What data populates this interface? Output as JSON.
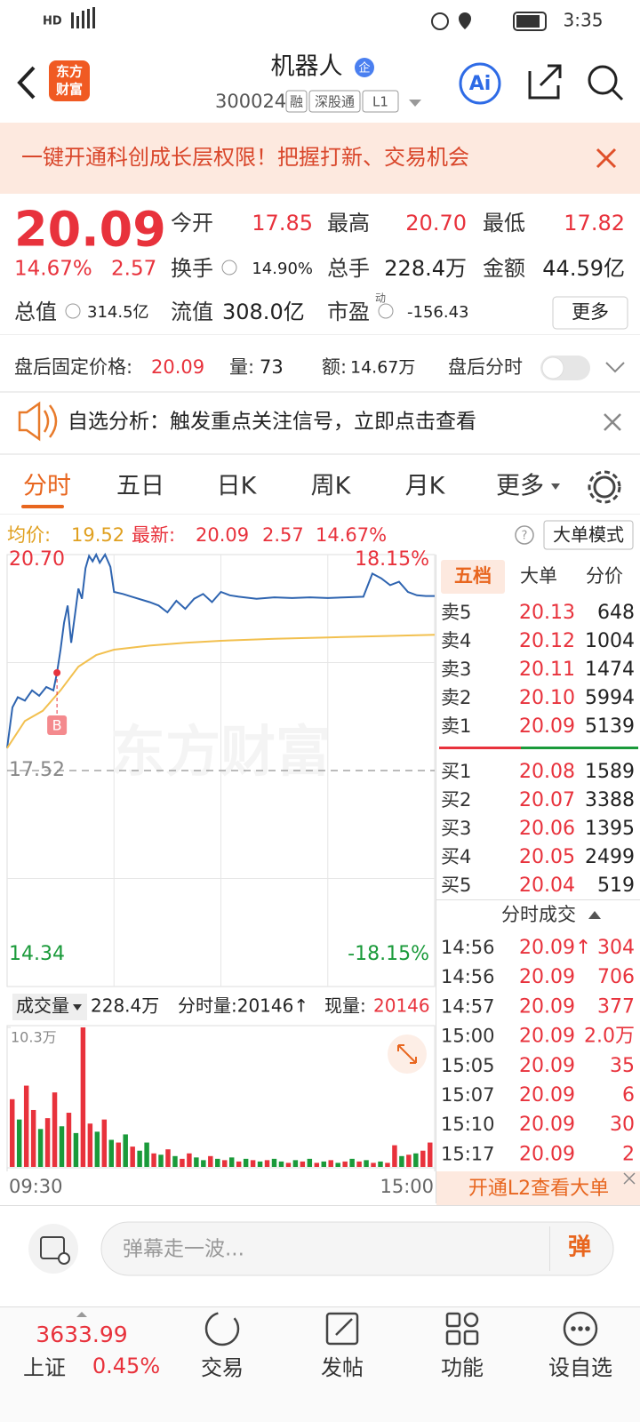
{
  "status_bar": {
    "network": "HD",
    "time": "3:35"
  },
  "header": {
    "logo": [
      "东方",
      "财富"
    ],
    "title": "机器人",
    "badge": "企",
    "code": "300024",
    "tags": [
      "融",
      "深股通",
      "L1"
    ]
  },
  "banner": {
    "text": "一键开通科创成长层权限！把握打新、交易机会"
  },
  "quote": {
    "price": "20.09",
    "percent": "14.67%",
    "change": "2.57",
    "fields": [
      {
        "label": "今开",
        "value": "17.85"
      },
      {
        "label": "最高",
        "value": "20.70"
      },
      {
        "label": "最低",
        "value": "17.82"
      },
      {
        "label": "换手",
        "value": "14.90%"
      },
      {
        "label": "总手",
        "value": "228.4万"
      },
      {
        "label": "金额",
        "value": "44.59亿"
      },
      {
        "label": "总值",
        "value": "314.5亿"
      },
      {
        "label": "流值",
        "value": "308.0亿"
      },
      {
        "label": "市盈",
        "sup": "动",
        "value": "-156.43"
      }
    ],
    "more": "更多"
  },
  "after_hours": {
    "label": "盘后固定价格:",
    "price": "20.09",
    "volume_label": "量:",
    "volume": "73",
    "amount_label": "额:",
    "amount": "14.67万",
    "toggle": "盘后分时"
  },
  "notice": {
    "text": "自选分析：触发重点关注信号，立即点击查看"
  },
  "tabs": {
    "items": [
      "分时",
      "五日",
      "日K",
      "周K",
      "月K",
      "更多"
    ]
  },
  "info_bar": {
    "avg_label": "均价:",
    "avg": "19.52",
    "latest_label": "最新:",
    "latest": "20.09",
    "change": "2.57",
    "percent": "14.67%",
    "mode": "大单模式"
  },
  "chart_data": [
    {
      "type": "line",
      "watermark": "东方财富",
      "marker": "B",
      "xlim": [
        0,
        240
      ],
      "xticks": [
        {
          "value": 0,
          "label": "09:30"
        },
        {
          "value": 240,
          "label": "15:00"
        }
      ],
      "ylim": [
        14.34,
        20.7
      ],
      "yticks": [
        {
          "value": 20.7,
          "label": "20.70"
        },
        {
          "value": 17.52,
          "label": "17.52"
        },
        {
          "value": 14.34,
          "label": "14.34"
        }
      ],
      "y2lim": [
        -18.15,
        18.15
      ],
      "y2ticks": [
        {
          "value": 18.15,
          "label": "18.15%"
        },
        {
          "value": -18.15,
          "label": "-18.15%"
        }
      ],
      "series": [
        {
          "color": "#2e64b0",
          "x": [
            0,
            3,
            6,
            10,
            14,
            18,
            22,
            26,
            28,
            30,
            32,
            34,
            36,
            38,
            40,
            42,
            44,
            46,
            48,
            50,
            52,
            55,
            58,
            60,
            65,
            70,
            80,
            85,
            90,
            95,
            100,
            105,
            110,
            115,
            120,
            125,
            130,
            140,
            150,
            160,
            170,
            180,
            190,
            200,
            205,
            210,
            215,
            220,
            225,
            230,
            235,
            240
          ],
          "values": [
            17.85,
            18.45,
            18.6,
            18.55,
            18.7,
            18.62,
            18.75,
            18.7,
            18.96,
            19.3,
            19.7,
            19.95,
            19.4,
            19.8,
            20.2,
            20.05,
            20.5,
            20.68,
            20.6,
            20.7,
            20.58,
            20.7,
            20.52,
            20.15,
            20.12,
            20.08,
            20.0,
            19.95,
            19.85,
            20.02,
            19.9,
            20.05,
            20.12,
            20.0,
            20.15,
            20.1,
            20.08,
            20.05,
            20.07,
            20.06,
            20.07,
            20.06,
            20.07,
            20.08,
            20.42,
            20.35,
            20.25,
            20.3,
            20.15,
            20.1,
            20.09,
            20.09
          ]
        },
        {
          "color": "#f2c04f",
          "x": [
            0,
            10,
            20,
            30,
            40,
            50,
            60,
            80,
            100,
            120,
            150,
            180,
            210,
            240
          ],
          "values": [
            17.85,
            18.25,
            18.4,
            18.7,
            19.05,
            19.22,
            19.3,
            19.36,
            19.4,
            19.43,
            19.46,
            19.48,
            19.5,
            19.52
          ]
        }
      ]
    },
    {
      "type": "bar",
      "title": "成交量",
      "total": "228.4万",
      "tick_text": "分时量:20146↑",
      "current_label": "现量:",
      "current": "20146",
      "ylim": [
        0,
        10.3
      ],
      "yticks": [
        {
          "value": 10.3,
          "label": "10.3万"
        }
      ],
      "values": [
        5.0,
        3.5,
        6.0,
        4.2,
        2.8,
        3.6,
        5.5,
        3.0,
        4.0,
        2.5,
        10.3,
        3.2,
        2.6,
        3.5,
        2.0,
        1.8,
        2.4,
        1.5,
        1.2,
        1.8,
        1.0,
        0.9,
        1.3,
        0.8,
        0.6,
        1.0,
        0.7,
        0.5,
        0.8,
        0.6,
        0.5,
        0.7,
        0.4,
        0.6,
        0.5,
        0.4,
        0.5,
        0.6,
        0.4,
        0.3,
        0.5,
        0.4,
        0.6,
        0.3,
        0.4,
        0.5,
        0.3,
        0.4,
        0.6,
        0.4,
        0.5,
        0.3,
        0.4,
        0.3,
        1.6,
        0.8,
        0.9,
        1.0,
        1.2,
        1.8
      ],
      "colors": [
        "#e8323c",
        "#1a9a3a",
        "#e8323c",
        "#e8323c",
        "#1a9a3a",
        "#e8323c",
        "#e8323c",
        "#1a9a3a",
        "#e8323c",
        "#1a9a3a",
        "#e8323c",
        "#e8323c",
        "#1a9a3a",
        "#e8323c",
        "#1a9a3a",
        "#e8323c",
        "#1a9a3a",
        "#e8323c",
        "#1a9a3a",
        "#1a9a3a",
        "#e8323c",
        "#1a9a3a",
        "#e8323c",
        "#1a9a3a",
        "#e8323c",
        "#e8323c",
        "#1a9a3a",
        "#1a9a3a",
        "#e8323c",
        "#1a9a3a",
        "#e8323c",
        "#1a9a3a",
        "#e8323c",
        "#1a9a3a",
        "#e8323c",
        "#1a9a3a",
        "#e8323c",
        "#1a9a3a",
        "#1a9a3a",
        "#e8323c",
        "#1a9a3a",
        "#e8323c",
        "#1a9a3a",
        "#e8323c",
        "#1a9a3a",
        "#e8323c",
        "#1a9a3a",
        "#e8323c",
        "#1a9a3a",
        "#e8323c",
        "#1a9a3a",
        "#e8323c",
        "#1a9a3a",
        "#e8323c",
        "#e8323c",
        "#1a9a3a",
        "#e8323c",
        "#1a9a3a",
        "#e8323c",
        "#e8323c"
      ]
    }
  ],
  "order_book": {
    "tabs": [
      "五档",
      "大单",
      "分价"
    ],
    "asks": [
      [
        "卖5",
        "20.13",
        "648"
      ],
      [
        "卖4",
        "20.12",
        "1004"
      ],
      [
        "卖3",
        "20.11",
        "1474"
      ],
      [
        "卖2",
        "20.10",
        "5994"
      ],
      [
        "卖1",
        "20.09",
        "5139"
      ]
    ],
    "bids": [
      [
        "买1",
        "20.08",
        "1589"
      ],
      [
        "买2",
        "20.07",
        "3388"
      ],
      [
        "买3",
        "20.06",
        "1395"
      ],
      [
        "买4",
        "20.05",
        "2499"
      ],
      [
        "买5",
        "20.04",
        "519"
      ]
    ]
  },
  "trades": {
    "title": "分时成交",
    "rows": [
      [
        "14:56",
        "20.09↑",
        "304"
      ],
      [
        "14:56",
        "20.09",
        "706"
      ],
      [
        "14:57",
        "20.09",
        "377"
      ],
      [
        "15:00",
        "20.09",
        "2.0万"
      ],
      [
        "15:05",
        "20.09",
        "35"
      ],
      [
        "15:07",
        "20.09",
        "6"
      ],
      [
        "15:10",
        "20.09",
        "30"
      ],
      [
        "15:17",
        "20.09",
        "2"
      ]
    ],
    "l2": "开通L2查看大单"
  },
  "bottom_bar": {
    "placeholder": "弹幕走一波...",
    "button": "弹"
  },
  "nav": {
    "index": {
      "value": "3633.99",
      "name": "上证",
      "percent": "0.45%"
    },
    "items": [
      "交易",
      "发帖",
      "功能",
      "设自选"
    ]
  }
}
